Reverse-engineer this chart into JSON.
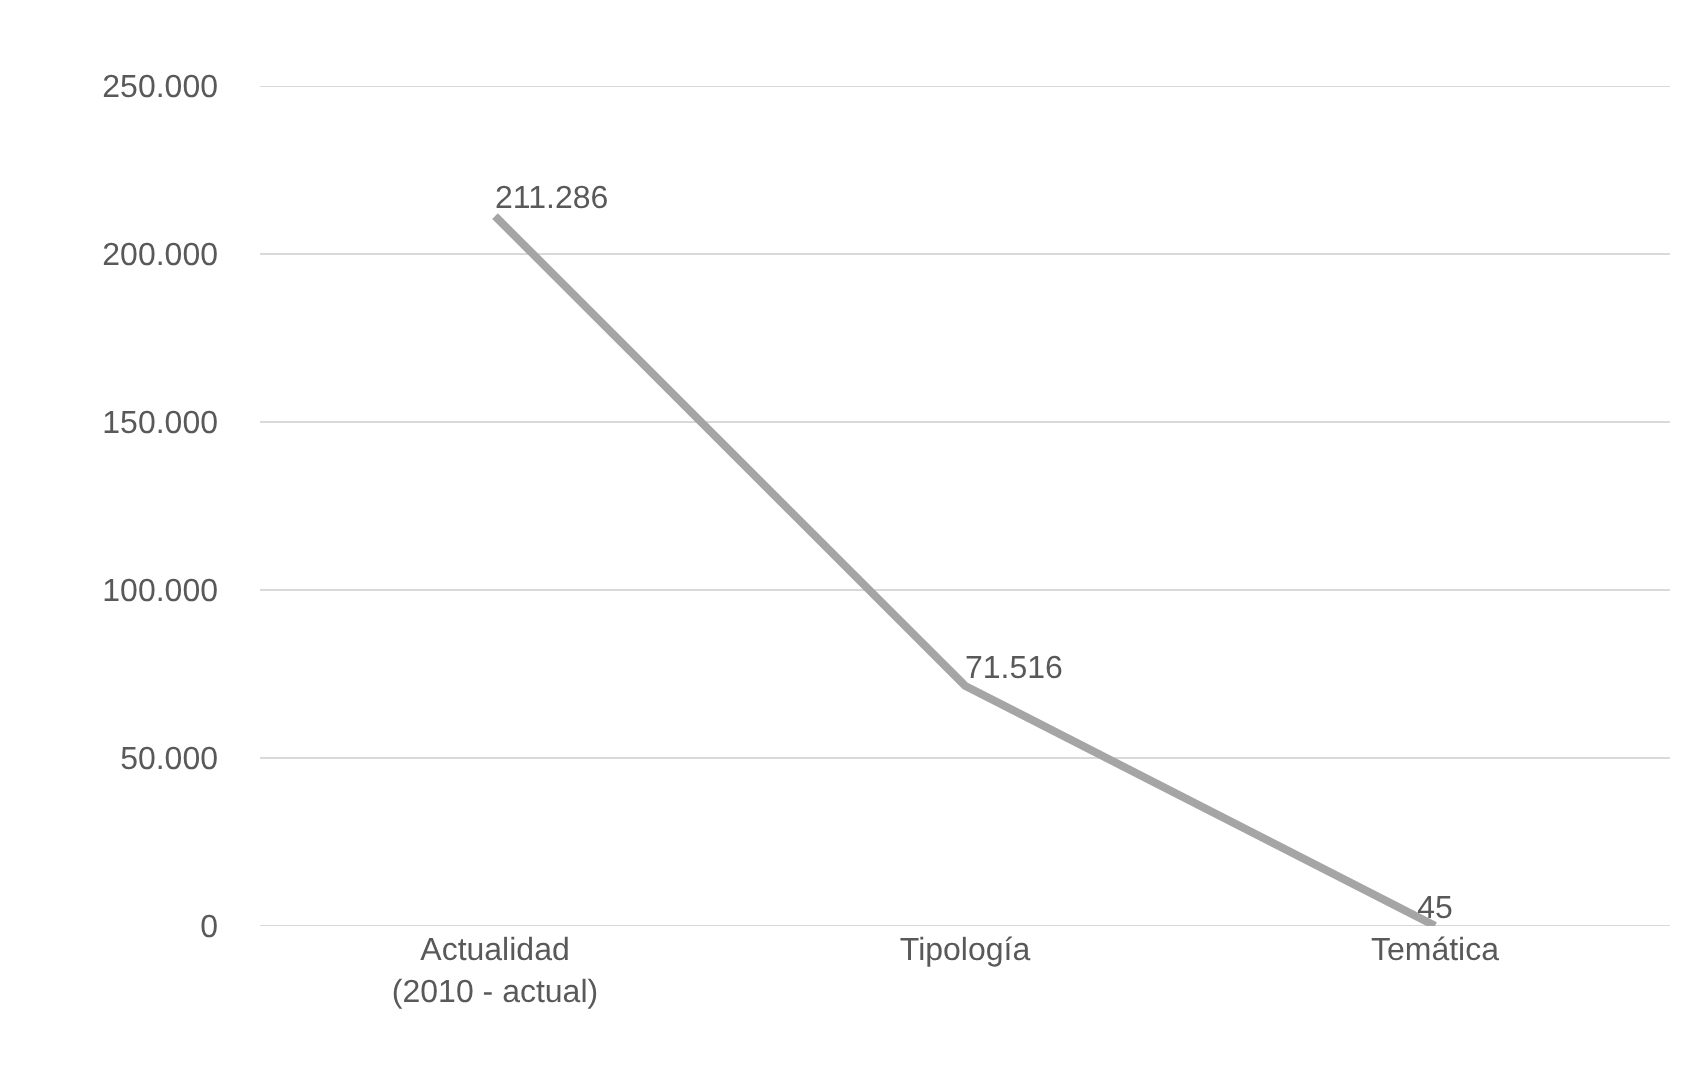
{
  "chart_data": {
    "type": "line",
    "categories": [
      "Actualidad (2010 - actual)",
      "Tipología",
      "Temática"
    ],
    "series": [
      {
        "color": "#a5a5a5",
        "values": [
          211286,
          71516,
          45
        ],
        "value_labels": [
          "211.286",
          "71.516",
          "45"
        ]
      }
    ],
    "ylim": [
      0,
      250000
    ],
    "yticks": [
      0,
      {
        "value": 50000,
        "label": "50.000"
      },
      {
        "value": 100000,
        "label": "100.000"
      },
      {
        "value": 150000,
        "label": "150.000"
      },
      {
        "value": 200000,
        "label": "200.000"
      },
      {
        "value": 250000,
        "label": "250.000"
      }
    ],
    "grid": "y",
    "marker": "none",
    "line_style": "solid"
  }
}
